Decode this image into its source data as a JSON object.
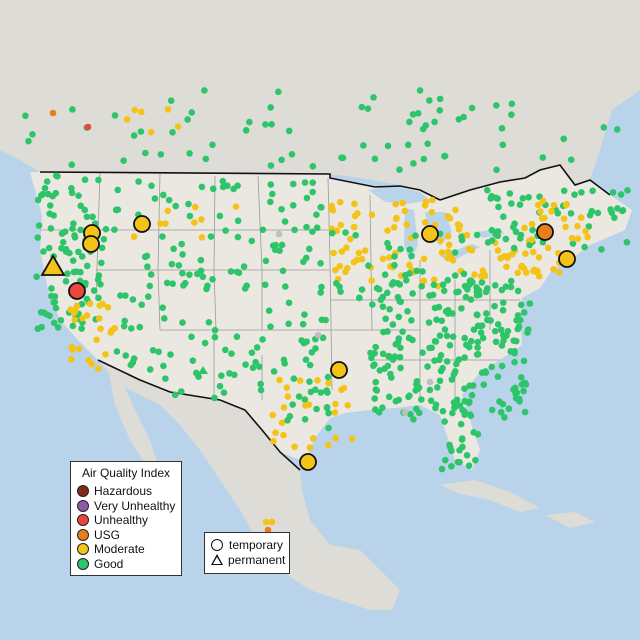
{
  "legend": {
    "title": "Air Quality Index",
    "items": [
      {
        "label": "Hazardous",
        "color": "#7e2a1a"
      },
      {
        "label": "Very Unhealthy",
        "color": "#8e5aa8"
      },
      {
        "label": "Unhealthy",
        "color": "#e8473b"
      },
      {
        "label": "USG",
        "color": "#e87e1b"
      },
      {
        "label": "Moderate",
        "color": "#f3c318"
      },
      {
        "label": "Good",
        "color": "#2ec46a"
      }
    ]
  },
  "site_legend": {
    "temporary": "temporary",
    "permanent": "permanent"
  },
  "map": {
    "land_color": "#dcdad4",
    "water_color": "#b9d3ea",
    "border_color": "#111111",
    "state_line_color": "#9a9a9a"
  }
}
